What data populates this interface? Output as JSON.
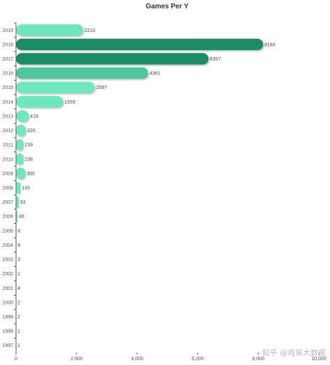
{
  "chart_data": {
    "type": "bar",
    "orientation": "horizontal",
    "title": "Games Per Y",
    "xlabel": "",
    "ylabel": "",
    "categories": [
      "2019",
      "2018",
      "2017",
      "2016",
      "2015",
      "2014",
      "2013",
      "2012",
      "2011",
      "2010",
      "2009",
      "2008",
      "2007",
      "2006",
      "2005",
      "2004",
      "2003",
      "2002",
      "2001",
      "2000",
      "1999",
      "1998",
      "1997"
    ],
    "values": [
      2213,
      8160,
      6357,
      4361,
      2597,
      1555,
      418,
      320,
      239,
      238,
      305,
      145,
      93,
      48,
      6,
      6,
      3,
      1,
      4,
      2,
      2,
      1,
      1
    ],
    "xlim": [
      0,
      10000
    ],
    "xticks": [
      "0",
      "2,000",
      "4,000",
      "6,000",
      "8,000",
      "10,000"
    ],
    "grid": false,
    "colors": {
      "low": "#6ee7bf",
      "mid": "#4cc79b",
      "high": "#1e8d64"
    }
  },
  "watermark": "知乎 @戏易大数据"
}
